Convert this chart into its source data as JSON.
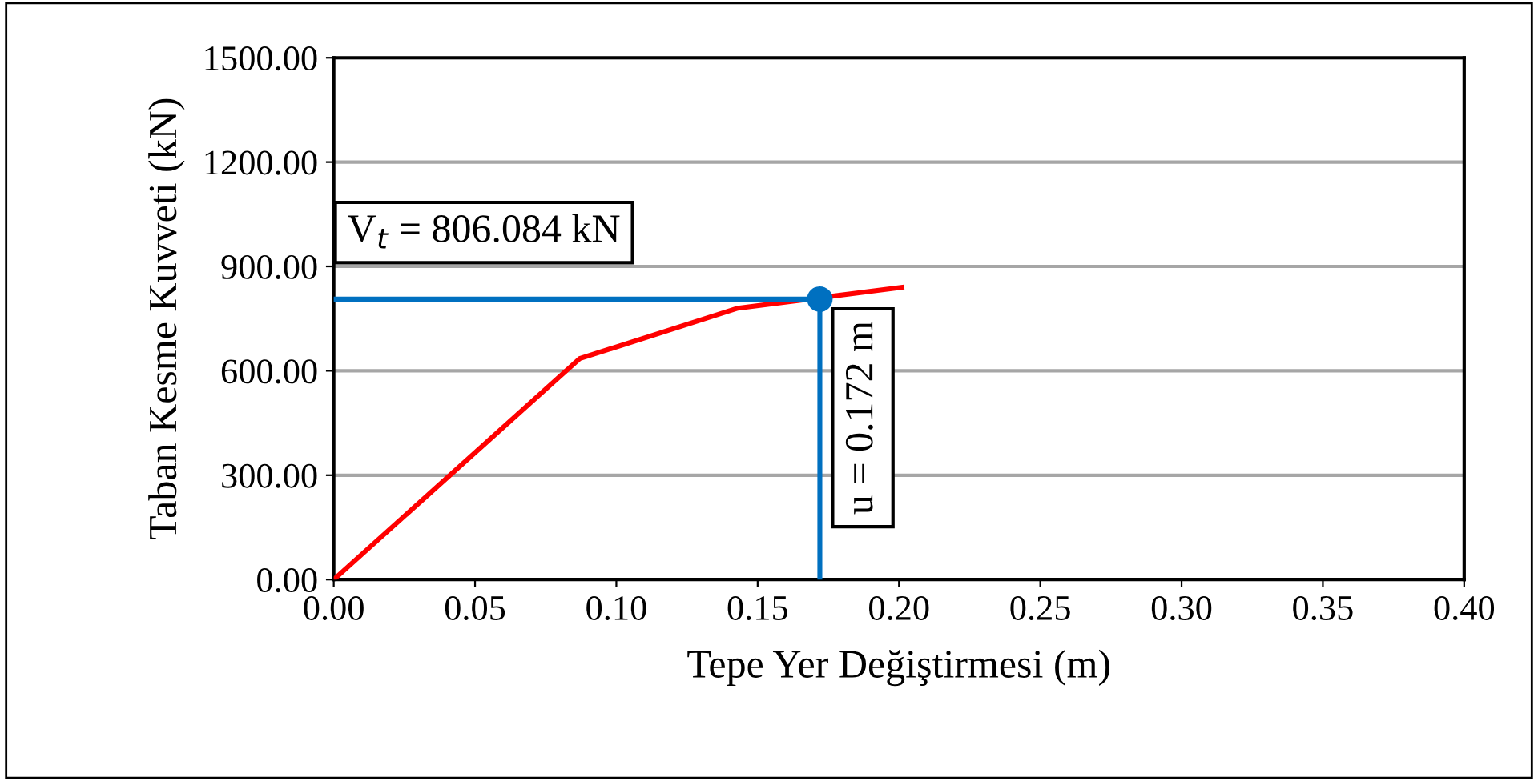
{
  "chart_data": {
    "type": "line",
    "xlabel": "Tepe Yer Değiştirmesi (m)",
    "ylabel": "Taban Kesme Kuvveti (kN)",
    "series": [
      {
        "color": "#ff0000",
        "x": [
          0,
          0.087,
          0.143,
          0.201
        ],
        "values": [
          0,
          635,
          780,
          840
        ]
      },
      {
        "color": "#0070c0",
        "x": [
          0,
          0.172
        ],
        "values": [
          806,
          806
        ]
      },
      {
        "color": "#0070c0",
        "x": [
          0.172,
          0.172
        ],
        "values": [
          0,
          806
        ]
      },
      {
        "type": "scatter",
        "color": "#0070c0",
        "marker": "circle",
        "x": [
          0.172
        ],
        "values": [
          806
        ]
      }
    ],
    "annotations": [
      "V$_{t}$ = 806.084 kN",
      "u = 0.172 m"
    ],
    "xlim": [
      0,
      0.4
    ],
    "xticks": [
      {
        "value": 0,
        "label": "0.00"
      },
      {
        "value": 0.05,
        "label": "0.05"
      },
      {
        "value": 0.1,
        "label": "0.10"
      },
      {
        "value": 0.15,
        "label": "0.15"
      },
      {
        "value": 0.2,
        "label": "0.20"
      },
      {
        "value": 0.25,
        "label": "0.25"
      },
      {
        "value": 0.3,
        "label": "0.30"
      },
      {
        "value": 0.35,
        "label": "0.35"
      },
      {
        "value": 0.4,
        "label": "0.40"
      }
    ],
    "ylim": [
      0,
      1500
    ],
    "yticks": [
      {
        "value": 0,
        "label": "0.00"
      },
      {
        "value": 300,
        "label": "300.00"
      },
      {
        "value": 600,
        "label": "600.00"
      },
      {
        "value": 900,
        "label": "900.00"
      },
      {
        "value": 1200,
        "label": "1200.00"
      },
      {
        "value": 1500,
        "label": "1500.00"
      }
    ],
    "grid": "y",
    "legend": false
  }
}
